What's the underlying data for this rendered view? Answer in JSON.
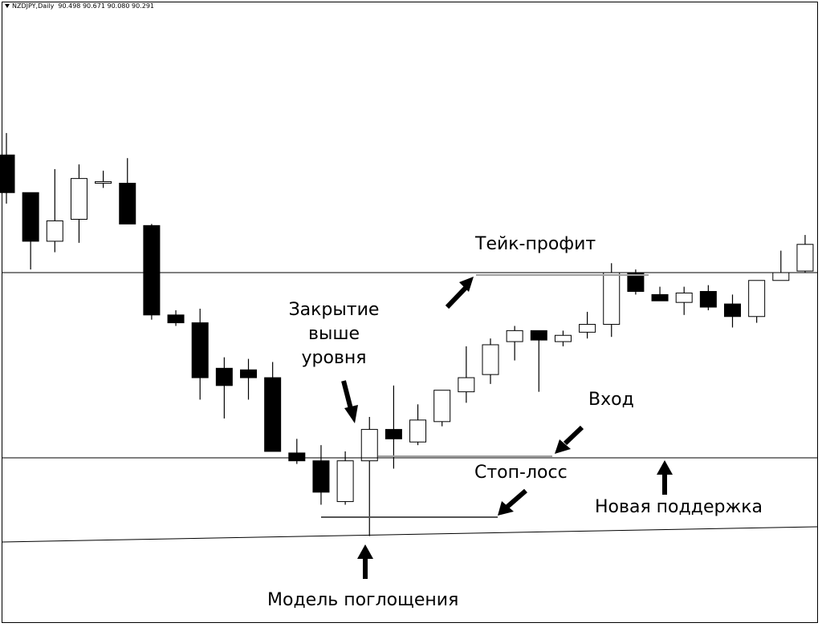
{
  "header": {
    "symbol": "NZDJPY,Daily",
    "ohlc": "90.498 90.671 90.080 90.291"
  },
  "annotations": {
    "take_profit": "Тейк-профит",
    "close_above_1": "Закрытие",
    "close_above_2": "выше",
    "close_above_3": "уровня",
    "entry": "Вход",
    "stop_loss": "Стоп-лосс",
    "new_support": "Новая поддержка",
    "engulfing": "Модель поглощения"
  },
  "colors": {
    "bull_body": "#ffffff",
    "bear_body": "#000000",
    "line": "#000000",
    "level_gray": "#a0a0a0"
  },
  "chart_data": {
    "type": "candlestick",
    "title": "NZDJPY,Daily",
    "ylim": [
      88.2,
      92.6
    ],
    "candles": [
      {
        "o": 91.55,
        "h": 91.69,
        "l": 91.24,
        "c": 91.31
      },
      {
        "o": 91.31,
        "h": 91.31,
        "l": 90.82,
        "c": 91.0
      },
      {
        "o": 91.0,
        "h": 91.46,
        "l": 90.93,
        "c": 91.13
      },
      {
        "o": 91.14,
        "h": 91.49,
        "l": 90.99,
        "c": 91.4
      },
      {
        "o": 91.38,
        "h": 91.45,
        "l": 91.34,
        "c": 91.38
      },
      {
        "o": 91.37,
        "h": 91.53,
        "l": 91.12,
        "c": 91.11
      },
      {
        "o": 91.1,
        "h": 91.11,
        "l": 90.5,
        "c": 90.53
      },
      {
        "o": 90.53,
        "h": 90.56,
        "l": 90.46,
        "c": 90.48
      },
      {
        "o": 90.48,
        "h": 90.57,
        "l": 89.99,
        "c": 90.13
      },
      {
        "o": 90.19,
        "h": 90.26,
        "l": 89.87,
        "c": 90.08
      },
      {
        "o": 90.18,
        "h": 90.25,
        "l": 89.99,
        "c": 90.13
      },
      {
        "o": 90.13,
        "h": 90.23,
        "l": 89.66,
        "c": 89.66
      },
      {
        "o": 89.65,
        "h": 89.74,
        "l": 89.58,
        "c": 89.6
      },
      {
        "o": 89.6,
        "h": 89.7,
        "l": 89.32,
        "c": 89.4
      },
      {
        "o": 89.34,
        "h": 89.66,
        "l": 89.32,
        "c": 89.6
      },
      {
        "o": 89.6,
        "h": 89.88,
        "l": 89.12,
        "c": 89.8
      },
      {
        "o": 89.8,
        "h": 90.08,
        "l": 89.55,
        "c": 89.74
      },
      {
        "o": 89.72,
        "h": 89.96,
        "l": 89.7,
        "c": 89.86
      },
      {
        "o": 89.85,
        "h": 90.03,
        "l": 89.82,
        "c": 90.05
      },
      {
        "o": 90.04,
        "h": 90.33,
        "l": 89.97,
        "c": 90.13
      },
      {
        "o": 90.15,
        "h": 90.38,
        "l": 90.09,
        "c": 90.34
      },
      {
        "o": 90.36,
        "h": 90.46,
        "l": 90.24,
        "c": 90.43
      },
      {
        "o": 90.43,
        "h": 90.43,
        "l": 90.04,
        "c": 90.37
      },
      {
        "o": 90.36,
        "h": 90.43,
        "l": 90.33,
        "c": 90.4
      },
      {
        "o": 90.42,
        "h": 90.55,
        "l": 90.38,
        "c": 90.47
      },
      {
        "o": 90.47,
        "h": 90.86,
        "l": 90.39,
        "c": 90.8
      },
      {
        "o": 90.8,
        "h": 90.82,
        "l": 90.66,
        "c": 90.68
      },
      {
        "o": 90.66,
        "h": 90.71,
        "l": 90.62,
        "c": 90.62
      },
      {
        "o": 90.61,
        "h": 90.71,
        "l": 90.53,
        "c": 90.67
      },
      {
        "o": 90.68,
        "h": 90.72,
        "l": 90.56,
        "c": 90.58
      },
      {
        "o": 90.6,
        "h": 90.66,
        "l": 90.45,
        "c": 90.52
      },
      {
        "o": 90.52,
        "h": 90.75,
        "l": 90.48,
        "c": 90.75
      },
      {
        "o": 90.75,
        "h": 90.94,
        "l": 90.75,
        "c": 90.8
      },
      {
        "o": 90.81,
        "h": 91.04,
        "l": 90.8,
        "c": 90.98
      }
    ],
    "levels": {
      "resistance": 90.8,
      "support": 89.62,
      "take_profit": 90.79,
      "entry": 89.63,
      "stop_loss": 89.25
    }
  }
}
